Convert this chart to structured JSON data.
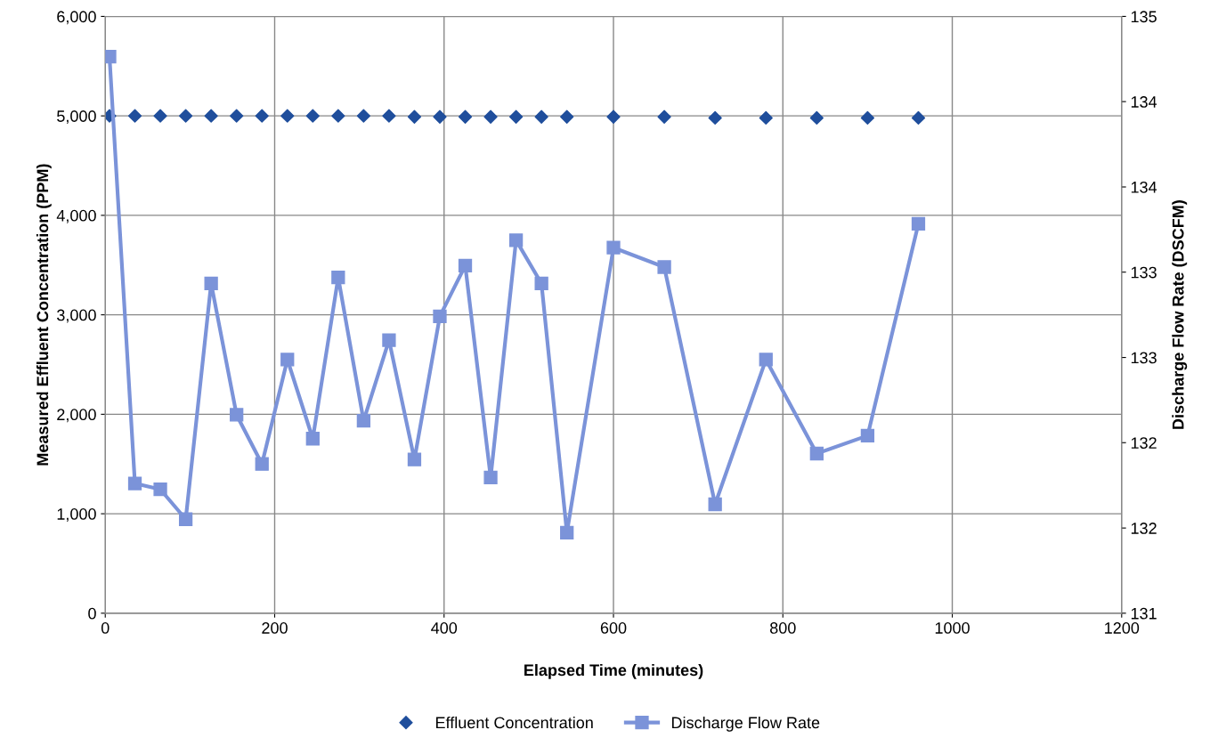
{
  "chart_data": {
    "type": "line",
    "xlabel": "Elapsed Time (minutes)",
    "ylabel": "Measured Effluent Concentration (PPM)",
    "y2label": "Discharge Flow Rate (DSCFM)",
    "xlim": [
      0,
      1200
    ],
    "xticks": [
      0,
      200,
      400,
      600,
      800,
      1000,
      1200
    ],
    "ylim": [
      0,
      6000
    ],
    "yticks": [
      {
        "value": 0,
        "label": "0"
      },
      {
        "value": 1000,
        "label": "1,000"
      },
      {
        "value": 2000,
        "label": "2,000"
      },
      {
        "value": 3000,
        "label": "3,000"
      },
      {
        "value": 4000,
        "label": "4,000"
      },
      {
        "value": 5000,
        "label": "5,000"
      },
      {
        "value": 6000,
        "label": "6,000"
      }
    ],
    "y2lim": [
      131,
      135
    ],
    "y2ticks": [
      131,
      {
        "value": 131.571,
        "label": "132"
      },
      {
        "value": 132.143,
        "label": "132"
      },
      {
        "value": 132.714,
        "label": "133"
      },
      {
        "value": 133.286,
        "label": "133"
      },
      {
        "value": 133.857,
        "label": "134"
      },
      {
        "value": 134.429,
        "label": "134"
      },
      135
    ],
    "grid": true,
    "legend": "bottom",
    "series": [
      {
        "name": "Effluent Concentration",
        "type": "scatter",
        "marker": "diamond",
        "color": "#1f4e9c",
        "x": [
          5,
          35,
          65,
          95,
          125,
          155,
          185,
          215,
          245,
          275,
          305,
          335,
          365,
          395,
          425,
          455,
          485,
          515,
          545,
          600,
          660,
          720,
          780,
          840,
          900,
          960
        ],
        "values": [
          5000,
          5000,
          5000,
          5000,
          5000,
          5000,
          5000,
          5000,
          5000,
          5000,
          5000,
          5000,
          4990,
          4990,
          4990,
          4990,
          4990,
          4990,
          4990,
          4990,
          4990,
          4980,
          4980,
          4980,
          4980,
          4980
        ]
      },
      {
        "name": "Discharge Flow Rate",
        "marker": "square",
        "axis": "y2",
        "color": "#7b93d9",
        "x": [
          5,
          35,
          65,
          95,
          125,
          155,
          185,
          215,
          245,
          275,
          305,
          335,
          365,
          395,
          425,
          455,
          485,
          515,
          545,
          600,
          660,
          720,
          780,
          840,
          900,
          960
        ],
        "values": [
          134.73,
          131.87,
          131.83,
          131.63,
          133.21,
          132.33,
          132.0,
          132.7,
          132.17,
          133.25,
          132.29,
          132.83,
          132.03,
          132.99,
          133.33,
          131.91,
          133.5,
          133.21,
          131.54,
          133.45,
          133.32,
          131.73,
          132.7,
          132.07,
          132.19,
          133.61
        ]
      }
    ]
  }
}
